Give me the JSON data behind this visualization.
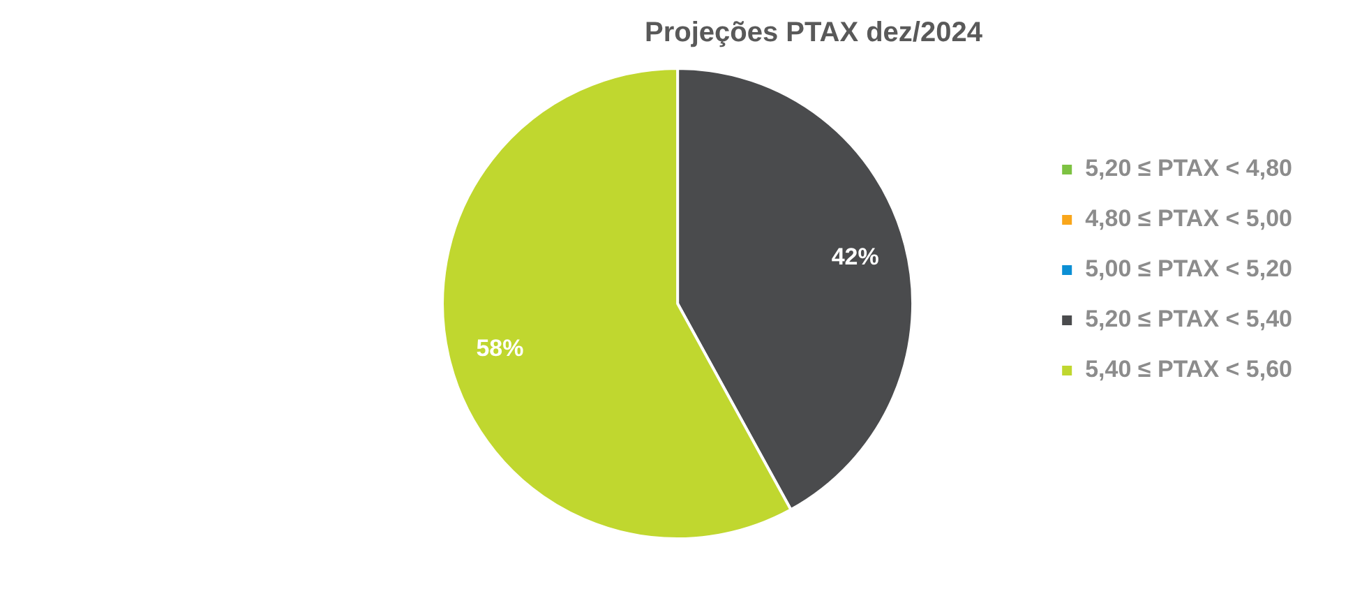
{
  "chart_data": {
    "type": "pie",
    "title": "Projeções PTAX dez/2024",
    "categories": [
      "5,20 ≤ PTAX < 4,80",
      "4,80 ≤ PTAX < 5,00",
      "5,00 ≤ PTAX < 5,20",
      "5,20 ≤ PTAX < 5,40",
      "5,40 ≤ PTAX < 5,60"
    ],
    "values": [
      0,
      0,
      0,
      42,
      58
    ],
    "colors": [
      "#7dc242",
      "#f9a61a",
      "#0b8fd4",
      "#4a4b4d",
      "#c0d72f"
    ],
    "value_labels": [
      null,
      null,
      null,
      "42%",
      "58%"
    ],
    "legend": "right"
  }
}
